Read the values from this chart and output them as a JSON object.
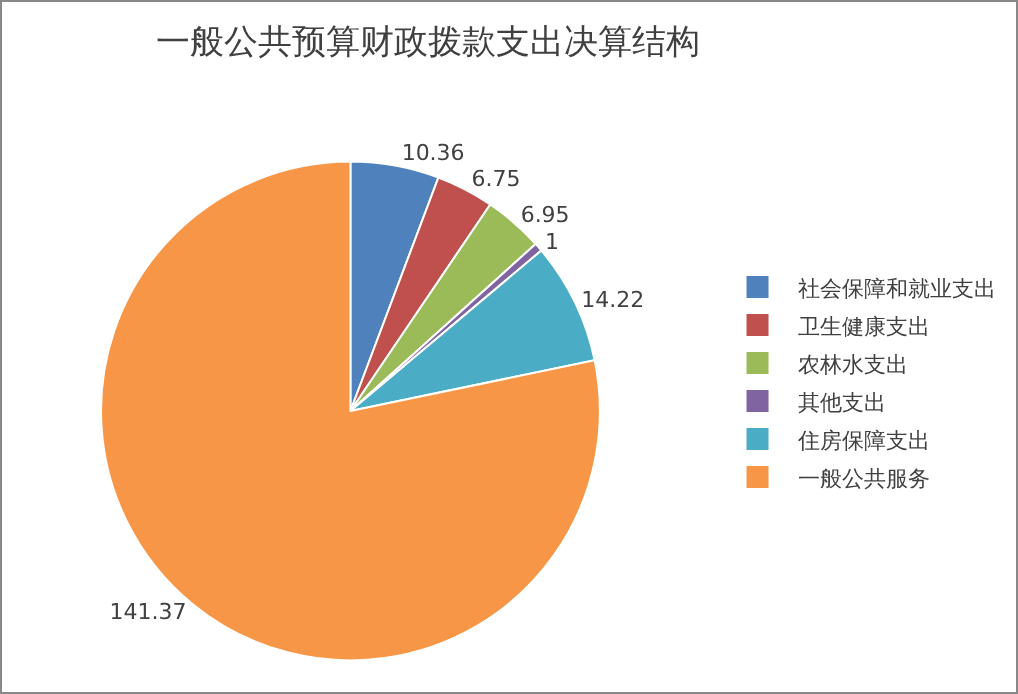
{
  "chart_data": {
    "type": "pie",
    "title": "一般公共预算财政拨款支出决算结构",
    "categories": [
      "社会保障和就业支出",
      "卫生健康支出",
      "农林水支出",
      "其他支出",
      "住房保障支出",
      "一般公共服务"
    ],
    "values": [
      10.36,
      6.75,
      6.95,
      1,
      14.22,
      141.37
    ],
    "colors": [
      "#4f81bd",
      "#c0504d",
      "#9bbb59",
      "#8064a2",
      "#4bacc6",
      "#f79646"
    ],
    "data_labels": true,
    "legend": "right"
  }
}
